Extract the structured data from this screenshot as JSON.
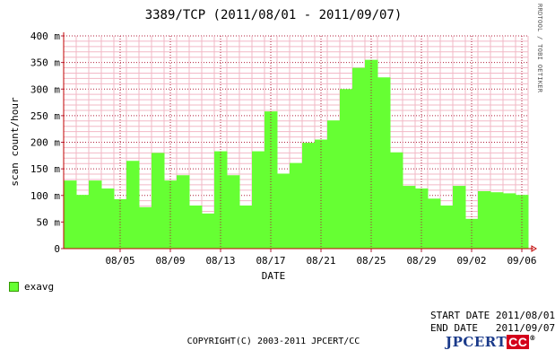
{
  "chart_data": {
    "type": "bar",
    "title": "3389/TCP (2011/08/01 - 2011/09/07)",
    "xlabel": "DATE",
    "ylabel": "scan count/hour",
    "ylim": [
      0,
      400
    ],
    "yticks": [
      "0",
      "50 m",
      "100 m",
      "150 m",
      "200 m",
      "250 m",
      "300 m",
      "350 m",
      "400 m"
    ],
    "xticks": [
      "08/05",
      "08/09",
      "08/13",
      "08/17",
      "08/21",
      "08/25",
      "08/29",
      "09/02",
      "09/06"
    ],
    "categories": [
      "08/01",
      "08/02",
      "08/03",
      "08/04",
      "08/05",
      "08/06",
      "08/07",
      "08/08",
      "08/09",
      "08/10",
      "08/11",
      "08/12",
      "08/13",
      "08/14",
      "08/15",
      "08/16",
      "08/17",
      "08/18",
      "08/19",
      "08/20",
      "08/21",
      "08/22",
      "08/23",
      "08/24",
      "08/25",
      "08/26",
      "08/27",
      "08/28",
      "08/29",
      "08/30",
      "08/31",
      "09/01",
      "09/02",
      "09/03",
      "09/04",
      "09/05",
      "09/06"
    ],
    "series": [
      {
        "name": "exavg",
        "color": "#66ff33",
        "values": [
          128,
          101,
          128,
          113,
          93,
          165,
          78,
          180,
          128,
          138,
          81,
          66,
          183,
          138,
          81,
          183,
          258,
          141,
          161,
          199,
          205,
          241,
          300,
          340,
          355,
          322,
          181,
          118,
          113,
          94,
          81,
          118,
          56,
          108,
          106,
          104,
          101
        ]
      }
    ],
    "grid": true,
    "legend_position": "bottom-left"
  },
  "side_text": "RRDTOOL / TOBI OETIKER",
  "start_date": "START DATE 2011/08/01",
  "end_date": "END DATE   2011/09/07",
  "copyright": "COPYRIGHT(C) 2003-2011 JPCERT/CC",
  "logo": {
    "text": "JPCERT",
    "cc": "CC",
    "reg": "®"
  }
}
